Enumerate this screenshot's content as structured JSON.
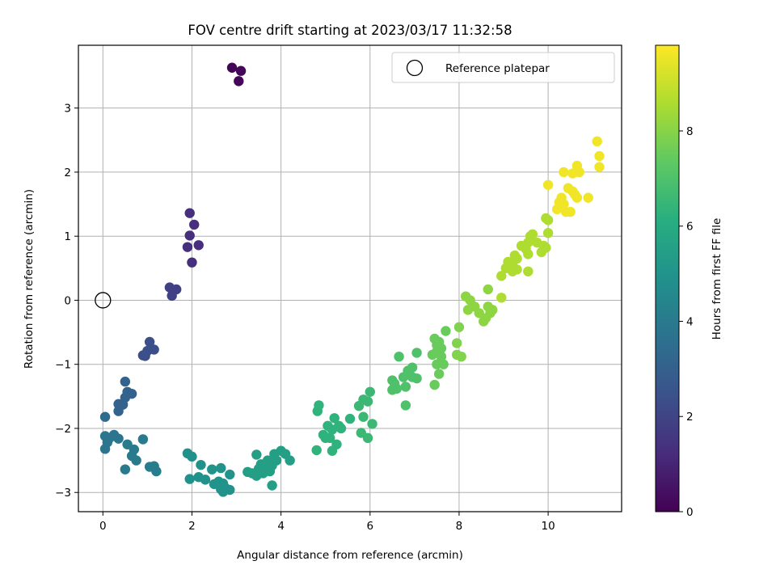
{
  "chart_data": {
    "type": "scatter",
    "title": "FOV centre drift starting at 2023/03/17 11:32:58",
    "xlabel": "Angular distance from reference (arcmin)",
    "ylabel": "Rotation from reference (arcmin)",
    "xlim": [
      -0.55,
      11.65
    ],
    "ylim": [
      -3.3,
      3.98
    ],
    "xticks": [
      0,
      2,
      4,
      6,
      8,
      10
    ],
    "yticks": [
      -3,
      -2,
      -1,
      0,
      1,
      2,
      3
    ],
    "grid": true,
    "legend": {
      "placement": "upper-right",
      "entries": [
        "Reference platepar"
      ]
    },
    "reference_point": {
      "x": 0,
      "y": 0
    },
    "colorbar": {
      "label": "Hours from first FF file",
      "range": [
        0,
        9.8
      ],
      "ticks": [
        0,
        2,
        4,
        6,
        8
      ],
      "colormap": "viridis"
    },
    "points": [
      {
        "x": 2.9,
        "y": 3.63,
        "t": 0.1
      },
      {
        "x": 3.1,
        "y": 3.58,
        "t": 0.2
      },
      {
        "x": 3.05,
        "y": 3.42,
        "t": 0.15
      },
      {
        "x": 1.95,
        "y": 1.36,
        "t": 1.3
      },
      {
        "x": 2.05,
        "y": 1.18,
        "t": 1.3
      },
      {
        "x": 1.95,
        "y": 1.01,
        "t": 1.3
      },
      {
        "x": 2.15,
        "y": 0.86,
        "t": 1.3
      },
      {
        "x": 1.9,
        "y": 0.83,
        "t": 1.3
      },
      {
        "x": 2.0,
        "y": 0.59,
        "t": 1.3
      },
      {
        "x": 1.5,
        "y": 0.2,
        "t": 1.9
      },
      {
        "x": 1.65,
        "y": 0.17,
        "t": 1.9
      },
      {
        "x": 1.55,
        "y": 0.07,
        "t": 1.9
      },
      {
        "x": 1.05,
        "y": -0.65,
        "t": 2.4
      },
      {
        "x": 1.15,
        "y": -0.77,
        "t": 2.4
      },
      {
        "x": 1.0,
        "y": -0.79,
        "t": 2.4
      },
      {
        "x": 0.9,
        "y": -0.86,
        "t": 2.4
      },
      {
        "x": 0.95,
        "y": -0.87,
        "t": 2.4
      },
      {
        "x": 0.5,
        "y": -1.27,
        "t": 3.1
      },
      {
        "x": 0.55,
        "y": -1.43,
        "t": 3.1
      },
      {
        "x": 0.65,
        "y": -1.46,
        "t": 3.1
      },
      {
        "x": 0.5,
        "y": -1.52,
        "t": 3.1
      },
      {
        "x": 0.35,
        "y": -1.62,
        "t": 3.1
      },
      {
        "x": 0.45,
        "y": -1.63,
        "t": 3.1
      },
      {
        "x": 0.35,
        "y": -1.73,
        "t": 3.1
      },
      {
        "x": 0.05,
        "y": -1.82,
        "t": 3.4
      },
      {
        "x": 0.05,
        "y": -2.12,
        "t": 3.8
      },
      {
        "x": 0.25,
        "y": -2.1,
        "t": 3.8
      },
      {
        "x": 0.15,
        "y": -2.15,
        "t": 3.8
      },
      {
        "x": 0.35,
        "y": -2.16,
        "t": 3.8
      },
      {
        "x": 0.1,
        "y": -2.22,
        "t": 3.8
      },
      {
        "x": 0.05,
        "y": -2.32,
        "t": 3.8
      },
      {
        "x": 0.55,
        "y": -2.25,
        "t": 4.0
      },
      {
        "x": 0.7,
        "y": -2.33,
        "t": 4.0
      },
      {
        "x": 0.65,
        "y": -2.43,
        "t": 4.0
      },
      {
        "x": 0.75,
        "y": -2.5,
        "t": 4.0
      },
      {
        "x": 0.5,
        "y": -2.64,
        "t": 4.0
      },
      {
        "x": 0.9,
        "y": -2.17,
        "t": 4.0
      },
      {
        "x": 1.05,
        "y": -2.6,
        "t": 4.1
      },
      {
        "x": 1.15,
        "y": -2.59,
        "t": 4.1
      },
      {
        "x": 1.2,
        "y": -2.67,
        "t": 4.1
      },
      {
        "x": 1.9,
        "y": -2.39,
        "t": 4.9
      },
      {
        "x": 2.0,
        "y": -2.44,
        "t": 4.9
      },
      {
        "x": 2.2,
        "y": -2.57,
        "t": 4.9
      },
      {
        "x": 1.95,
        "y": -2.79,
        "t": 4.9
      },
      {
        "x": 2.15,
        "y": -2.76,
        "t": 4.9
      },
      {
        "x": 2.3,
        "y": -2.8,
        "t": 4.9
      },
      {
        "x": 2.45,
        "y": -2.64,
        "t": 5.0
      },
      {
        "x": 2.65,
        "y": -2.62,
        "t": 5.0
      },
      {
        "x": 2.5,
        "y": -2.87,
        "t": 5.0
      },
      {
        "x": 2.6,
        "y": -2.83,
        "t": 5.0
      },
      {
        "x": 2.7,
        "y": -2.86,
        "t": 5.0
      },
      {
        "x": 2.85,
        "y": -2.72,
        "t": 5.0
      },
      {
        "x": 2.75,
        "y": -2.93,
        "t": 5.0
      },
      {
        "x": 2.65,
        "y": -2.95,
        "t": 5.0
      },
      {
        "x": 2.85,
        "y": -2.96,
        "t": 5.0
      },
      {
        "x": 2.7,
        "y": -2.99,
        "t": 5.0
      },
      {
        "x": 3.25,
        "y": -2.68,
        "t": 5.5
      },
      {
        "x": 3.35,
        "y": -2.7,
        "t": 5.5
      },
      {
        "x": 3.45,
        "y": -2.74,
        "t": 5.5
      },
      {
        "x": 3.45,
        "y": -2.41,
        "t": 5.5
      },
      {
        "x": 3.55,
        "y": -2.56,
        "t": 5.5
      },
      {
        "x": 3.5,
        "y": -2.63,
        "t": 5.5
      },
      {
        "x": 3.7,
        "y": -2.5,
        "t": 5.5
      },
      {
        "x": 3.65,
        "y": -2.6,
        "t": 5.5
      },
      {
        "x": 3.75,
        "y": -2.67,
        "t": 5.5
      },
      {
        "x": 3.6,
        "y": -2.7,
        "t": 5.5
      },
      {
        "x": 3.85,
        "y": -2.4,
        "t": 5.5
      },
      {
        "x": 3.9,
        "y": -2.5,
        "t": 5.5
      },
      {
        "x": 3.8,
        "y": -2.58,
        "t": 5.5
      },
      {
        "x": 4.0,
        "y": -2.35,
        "t": 5.5
      },
      {
        "x": 4.1,
        "y": -2.4,
        "t": 5.5
      },
      {
        "x": 4.2,
        "y": -2.5,
        "t": 5.5
      },
      {
        "x": 3.8,
        "y": -2.89,
        "t": 5.5
      },
      {
        "x": 4.85,
        "y": -1.64,
        "t": 6.3
      },
      {
        "x": 4.82,
        "y": -1.73,
        "t": 6.3
      },
      {
        "x": 4.95,
        "y": -2.1,
        "t": 6.3
      },
      {
        "x": 5.05,
        "y": -1.96,
        "t": 6.3
      },
      {
        "x": 5.15,
        "y": -2.02,
        "t": 6.3
      },
      {
        "x": 5.2,
        "y": -1.84,
        "t": 6.3
      },
      {
        "x": 5.0,
        "y": -2.15,
        "t": 6.3
      },
      {
        "x": 5.1,
        "y": -2.15,
        "t": 6.3
      },
      {
        "x": 5.3,
        "y": -1.96,
        "t": 6.3
      },
      {
        "x": 5.35,
        "y": -2.0,
        "t": 6.3
      },
      {
        "x": 5.25,
        "y": -2.25,
        "t": 6.3
      },
      {
        "x": 4.8,
        "y": -2.34,
        "t": 6.3
      },
      {
        "x": 5.15,
        "y": -2.35,
        "t": 6.3
      },
      {
        "x": 5.55,
        "y": -1.85,
        "t": 6.3
      },
      {
        "x": 5.75,
        "y": -1.65,
        "t": 6.6
      },
      {
        "x": 5.85,
        "y": -1.55,
        "t": 6.6
      },
      {
        "x": 5.95,
        "y": -1.58,
        "t": 6.6
      },
      {
        "x": 6.0,
        "y": -1.43,
        "t": 6.6
      },
      {
        "x": 5.85,
        "y": -1.82,
        "t": 6.6
      },
      {
        "x": 6.05,
        "y": -1.93,
        "t": 6.6
      },
      {
        "x": 5.8,
        "y": -2.07,
        "t": 6.6
      },
      {
        "x": 5.95,
        "y": -2.15,
        "t": 6.6
      },
      {
        "x": 6.5,
        "y": -1.25,
        "t": 7.0
      },
      {
        "x": 6.55,
        "y": -1.3,
        "t": 7.0
      },
      {
        "x": 6.6,
        "y": -1.38,
        "t": 7.0
      },
      {
        "x": 6.5,
        "y": -1.4,
        "t": 7.0
      },
      {
        "x": 6.65,
        "y": -0.88,
        "t": 7.0
      },
      {
        "x": 6.75,
        "y": -1.2,
        "t": 7.0
      },
      {
        "x": 6.85,
        "y": -1.1,
        "t": 7.0
      },
      {
        "x": 6.95,
        "y": -1.2,
        "t": 7.0
      },
      {
        "x": 7.05,
        "y": -1.22,
        "t": 7.0
      },
      {
        "x": 6.95,
        "y": -1.05,
        "t": 7.0
      },
      {
        "x": 6.8,
        "y": -1.35,
        "t": 7.0
      },
      {
        "x": 7.05,
        "y": -0.82,
        "t": 7.0
      },
      {
        "x": 6.8,
        "y": -1.64,
        "t": 7.0
      },
      {
        "x": 7.45,
        "y": -0.6,
        "t": 7.5
      },
      {
        "x": 7.5,
        "y": -0.7,
        "t": 7.5
      },
      {
        "x": 7.6,
        "y": -0.75,
        "t": 7.5
      },
      {
        "x": 7.55,
        "y": -0.65,
        "t": 7.5
      },
      {
        "x": 7.7,
        "y": -0.48,
        "t": 7.5
      },
      {
        "x": 7.4,
        "y": -0.85,
        "t": 7.5
      },
      {
        "x": 7.5,
        "y": -0.8,
        "t": 7.5
      },
      {
        "x": 7.6,
        "y": -0.88,
        "t": 7.5
      },
      {
        "x": 7.5,
        "y": -1.0,
        "t": 7.5
      },
      {
        "x": 7.65,
        "y": -1.0,
        "t": 7.5
      },
      {
        "x": 7.55,
        "y": -1.15,
        "t": 7.5
      },
      {
        "x": 7.45,
        "y": -1.32,
        "t": 7.5
      },
      {
        "x": 8.0,
        "y": -0.42,
        "t": 7.9
      },
      {
        "x": 7.95,
        "y": -0.67,
        "t": 7.9
      },
      {
        "x": 7.95,
        "y": -0.85,
        "t": 7.9
      },
      {
        "x": 8.05,
        "y": -0.88,
        "t": 7.9
      },
      {
        "x": 8.15,
        "y": 0.06,
        "t": 8.1
      },
      {
        "x": 8.25,
        "y": 0.0,
        "t": 8.1
      },
      {
        "x": 8.2,
        "y": -0.15,
        "t": 8.1
      },
      {
        "x": 8.35,
        "y": -0.1,
        "t": 8.1
      },
      {
        "x": 8.45,
        "y": -0.2,
        "t": 8.1
      },
      {
        "x": 8.6,
        "y": -0.28,
        "t": 8.1
      },
      {
        "x": 8.55,
        "y": -0.33,
        "t": 8.1
      },
      {
        "x": 8.7,
        "y": -0.2,
        "t": 8.1
      },
      {
        "x": 8.65,
        "y": -0.1,
        "t": 8.1
      },
      {
        "x": 8.75,
        "y": -0.15,
        "t": 8.1
      },
      {
        "x": 8.65,
        "y": 0.17,
        "t": 8.1
      },
      {
        "x": 8.95,
        "y": 0.04,
        "t": 8.6
      },
      {
        "x": 8.95,
        "y": 0.38,
        "t": 8.6
      },
      {
        "x": 9.05,
        "y": 0.5,
        "t": 8.6
      },
      {
        "x": 9.1,
        "y": 0.6,
        "t": 8.6
      },
      {
        "x": 9.2,
        "y": 0.55,
        "t": 8.6
      },
      {
        "x": 9.25,
        "y": 0.7,
        "t": 8.6
      },
      {
        "x": 9.3,
        "y": 0.65,
        "t": 8.6
      },
      {
        "x": 9.2,
        "y": 0.45,
        "t": 8.6
      },
      {
        "x": 9.3,
        "y": 0.48,
        "t": 8.6
      },
      {
        "x": 9.4,
        "y": 0.85,
        "t": 8.6
      },
      {
        "x": 9.55,
        "y": 0.9,
        "t": 8.6
      },
      {
        "x": 9.5,
        "y": 0.8,
        "t": 8.6
      },
      {
        "x": 9.6,
        "y": 1.0,
        "t": 8.6
      },
      {
        "x": 9.55,
        "y": 0.72,
        "t": 8.6
      },
      {
        "x": 9.55,
        "y": 0.45,
        "t": 8.6
      },
      {
        "x": 9.75,
        "y": 0.9,
        "t": 8.6
      },
      {
        "x": 9.85,
        "y": 0.75,
        "t": 8.6
      },
      {
        "x": 9.9,
        "y": 0.85,
        "t": 8.6
      },
      {
        "x": 9.95,
        "y": 0.82,
        "t": 8.6
      },
      {
        "x": 9.95,
        "y": 1.28,
        "t": 8.6
      },
      {
        "x": 10.0,
        "y": 1.25,
        "t": 8.6
      },
      {
        "x": 10.0,
        "y": 1.05,
        "t": 8.6
      },
      {
        "x": 9.65,
        "y": 1.03,
        "t": 8.6
      },
      {
        "x": 10.2,
        "y": 1.42,
        "t": 9.6
      },
      {
        "x": 10.3,
        "y": 1.45,
        "t": 9.6
      },
      {
        "x": 10.35,
        "y": 1.5,
        "t": 9.6
      },
      {
        "x": 10.4,
        "y": 1.38,
        "t": 9.6
      },
      {
        "x": 10.3,
        "y": 1.6,
        "t": 9.6
      },
      {
        "x": 10.25,
        "y": 1.53,
        "t": 9.6
      },
      {
        "x": 10.45,
        "y": 1.75,
        "t": 9.6
      },
      {
        "x": 10.55,
        "y": 1.7,
        "t": 9.6
      },
      {
        "x": 10.6,
        "y": 1.65,
        "t": 9.6
      },
      {
        "x": 10.65,
        "y": 1.6,
        "t": 9.6
      },
      {
        "x": 10.5,
        "y": 1.38,
        "t": 9.6
      },
      {
        "x": 10.35,
        "y": 2.0,
        "t": 9.6
      },
      {
        "x": 10.55,
        "y": 1.98,
        "t": 9.6
      },
      {
        "x": 10.7,
        "y": 2.0,
        "t": 9.6
      },
      {
        "x": 10.65,
        "y": 2.1,
        "t": 9.6
      },
      {
        "x": 10.0,
        "y": 1.8,
        "t": 9.6
      },
      {
        "x": 10.9,
        "y": 1.6,
        "t": 9.6
      },
      {
        "x": 11.1,
        "y": 2.48,
        "t": 9.6
      },
      {
        "x": 11.15,
        "y": 2.25,
        "t": 9.6
      },
      {
        "x": 11.15,
        "y": 2.08,
        "t": 9.6
      }
    ]
  }
}
